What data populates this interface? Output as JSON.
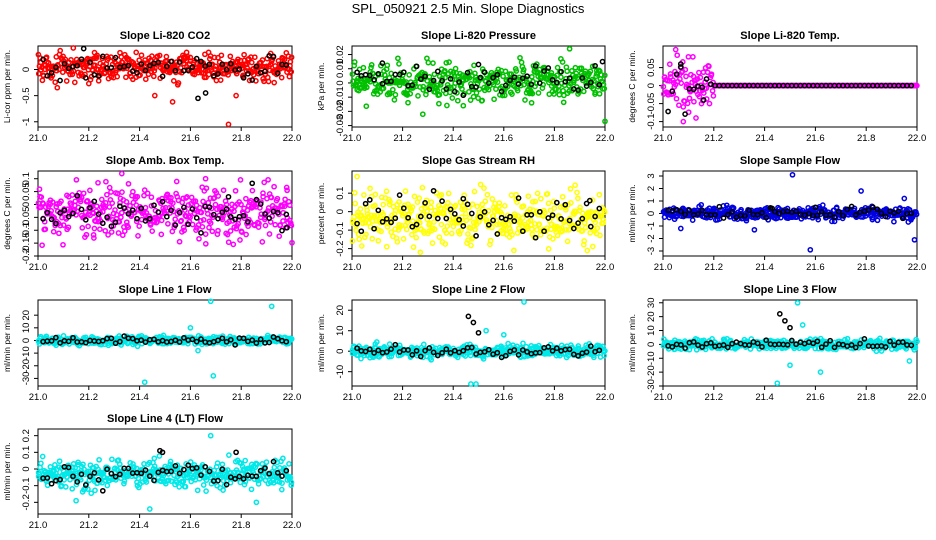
{
  "page": {
    "title": "SPL_050921  2.5 Min. Slope Diagnostics"
  },
  "chart_data": [
    {
      "id": "p1",
      "type": "scatter",
      "title": "Slope Li-820 CO2",
      "ylabel": "Li-cor ppm per min.",
      "xlim": [
        21.0,
        22.0
      ],
      "ylim": [
        -1.1,
        0.45
      ],
      "xticks": [
        21.0,
        21.2,
        21.4,
        21.6,
        21.8,
        22.0
      ],
      "yticks": [
        -1.0,
        -0.5,
        0.0
      ],
      "color": "#ff0000",
      "center": 0.05,
      "spread": 0.13,
      "outliers": [
        [
          21.46,
          -0.5
        ],
        [
          21.78,
          -0.5
        ],
        [
          21.93,
          -0.25
        ],
        [
          21.2,
          -0.27
        ],
        [
          21.75,
          -1.05
        ],
        [
          21.53,
          -0.62
        ]
      ],
      "black_outliers": [
        [
          21.18,
          0.4
        ],
        [
          21.63,
          -0.55
        ],
        [
          21.66,
          -0.45
        ]
      ]
    },
    {
      "id": "p2",
      "type": "scatter",
      "title": "Slope Li-820 Pressure",
      "ylabel": "kPa per min.",
      "xlim": [
        21.0,
        22.0
      ],
      "ylim": [
        -0.031,
        0.026
      ],
      "xticks": [
        21.0,
        21.2,
        21.4,
        21.6,
        21.8,
        22.0
      ],
      "yticks": [
        -0.03,
        -0.02,
        -0.01,
        0.0,
        0.01,
        0.02
      ],
      "color": "#00c000",
      "center": 0.001,
      "spread": 0.006,
      "outliers": [
        [
          21.28,
          -0.022
        ],
        [
          21.86,
          0.024
        ],
        [
          21.44,
          -0.016
        ],
        [
          21.71,
          -0.014
        ],
        [
          22.0,
          -0.027
        ],
        [
          21.32,
          0.014
        ]
      ],
      "black_outliers": [
        [
          21.12,
          0.014
        ],
        [
          21.99,
          0.015
        ],
        [
          21.5,
          0.013
        ]
      ]
    },
    {
      "id": "p3",
      "type": "scatter",
      "title": "Slope Li-820 Temp.",
      "ylabel": "degrees C per min.",
      "xlim": [
        21.0,
        22.0
      ],
      "ylim": [
        -0.115,
        0.11
      ],
      "xticks": [
        21.0,
        21.2,
        21.4,
        21.6,
        21.8,
        22.0
      ],
      "yticks": [
        -0.1,
        -0.05,
        0.0,
        0.05
      ],
      "color": "#ff00ff",
      "center": 0.0,
      "spread": 0.0,
      "transient_end": 21.2,
      "transient_spread": 0.035,
      "outliers": [
        [
          21.05,
          0.1
        ],
        [
          21.08,
          -0.1
        ],
        [
          21.13,
          -0.09
        ],
        [
          21.1,
          0.08
        ]
      ],
      "black_outliers": [
        [
          21.07,
          0.06
        ],
        [
          21.16,
          -0.04
        ]
      ]
    },
    {
      "id": "p4",
      "type": "scatter",
      "title": "Slope Amb. Box Temp.",
      "ylabel": "degrees C per min.",
      "xlim": [
        21.0,
        22.0
      ],
      "ylim": [
        -0.2,
        0.13
      ],
      "xticks": [
        21.0,
        21.2,
        21.4,
        21.6,
        21.8,
        22.0
      ],
      "yticks": [
        -0.2,
        -0.15,
        -0.1,
        -0.05,
        0.0,
        0.05,
        0.1
      ],
      "color": "#ff00ff",
      "center": -0.03,
      "spread": 0.05,
      "outliers": [
        [
          21.33,
          0.12
        ],
        [
          21.66,
          0.1
        ],
        [
          21.22,
          -0.13
        ]
      ],
      "black_outliers": [
        [
          21.75,
          0.03
        ],
        [
          21.98,
          -0.09
        ]
      ]
    },
    {
      "id": "p5",
      "type": "scatter",
      "title": "Slope Gas Stream RH",
      "ylabel": "percent per min.",
      "xlim": [
        21.0,
        22.0
      ],
      "ylim": [
        -0.24,
        0.22
      ],
      "xticks": [
        21.0,
        21.2,
        21.4,
        21.6,
        21.8,
        22.0
      ],
      "yticks": [
        -0.2,
        -0.1,
        0.0,
        0.1
      ],
      "color": "#ffff00",
      "center": -0.03,
      "spread": 0.065,
      "outliers": [
        [
          21.02,
          0.19
        ],
        [
          21.27,
          -0.22
        ],
        [
          21.93,
          -0.21
        ]
      ],
      "black_outliers": [
        [
          21.94,
          0.06
        ],
        [
          21.44,
          0.07
        ]
      ]
    },
    {
      "id": "p6",
      "type": "scatter",
      "title": "Slope Sample Flow",
      "ylabel": "ml/min per min.",
      "xlim": [
        21.0,
        22.0
      ],
      "ylim": [
        -3.4,
        3.4
      ],
      "xticks": [
        21.0,
        21.2,
        21.4,
        21.6,
        21.8,
        22.0
      ],
      "yticks": [
        -3,
        -2,
        -1,
        0,
        1,
        2,
        3
      ],
      "color": "#0000e0",
      "center": 0.0,
      "spread": 0.25,
      "outliers": [
        [
          21.51,
          3.1
        ],
        [
          21.07,
          -1.2
        ],
        [
          21.58,
          -2.9
        ],
        [
          21.99,
          -2.1
        ],
        [
          21.36,
          -1.3
        ],
        [
          21.78,
          1.8
        ],
        [
          21.95,
          1.2
        ]
      ],
      "black_outliers": [
        [
          21.43,
          0.4
        ],
        [
          21.6,
          0.5
        ]
      ]
    },
    {
      "id": "p7",
      "type": "scatter",
      "title": "Slope Line 1 Flow",
      "ylabel": "ml/min per min.",
      "xlim": [
        21.0,
        22.0
      ],
      "ylim": [
        -36,
        32
      ],
      "xticks": [
        21.0,
        21.2,
        21.4,
        21.6,
        21.8,
        22.0
      ],
      "yticks": [
        -30,
        -20,
        -10,
        0,
        10,
        20
      ],
      "color": "#00e8e8",
      "center": 0.0,
      "spread": 1.6,
      "outliers": [
        [
          21.42,
          -33
        ],
        [
          21.68,
          31
        ],
        [
          21.69,
          -28
        ],
        [
          21.92,
          27
        ],
        [
          21.6,
          10
        ],
        [
          21.63,
          -8
        ]
      ],
      "black_outliers": []
    },
    {
      "id": "p8",
      "type": "scatter",
      "title": "Slope Line 2 Flow",
      "ylabel": "ml/min per min.",
      "xlim": [
        21.0,
        22.0
      ],
      "ylim": [
        -17,
        25
      ],
      "xticks": [
        21.0,
        21.2,
        21.4,
        21.6,
        21.8,
        22.0
      ],
      "yticks": [
        -10,
        0,
        10,
        20
      ],
      "color": "#00e8e8",
      "center": 0.0,
      "spread": 1.5,
      "outliers": [
        [
          21.47,
          -16
        ],
        [
          21.49,
          -16
        ],
        [
          21.68,
          24
        ],
        [
          21.6,
          8
        ],
        [
          21.53,
          10
        ]
      ],
      "black_outliers": [
        [
          21.46,
          17
        ],
        [
          21.48,
          14
        ],
        [
          21.5,
          9
        ]
      ]
    },
    {
      "id": "p9",
      "type": "scatter",
      "title": "Slope Line 3 Flow",
      "ylabel": "ml/min per min.",
      "xlim": [
        21.0,
        22.0
      ],
      "ylim": [
        -30,
        32
      ],
      "xticks": [
        21.0,
        21.2,
        21.4,
        21.6,
        21.8,
        22.0
      ],
      "yticks": [
        -30,
        -20,
        -10,
        0,
        10,
        20,
        30
      ],
      "color": "#00e8e8",
      "center": 0.0,
      "spread": 1.8,
      "outliers": [
        [
          21.45,
          -28
        ],
        [
          21.53,
          30
        ],
        [
          21.5,
          -15
        ],
        [
          21.55,
          14
        ],
        [
          21.62,
          -20
        ],
        [
          21.97,
          -12
        ]
      ],
      "black_outliers": [
        [
          21.46,
          22
        ],
        [
          21.48,
          17
        ],
        [
          21.5,
          12
        ]
      ]
    },
    {
      "id": "p10",
      "type": "scatter",
      "title": "Slope Line 4 (LT) Flow",
      "ylabel": "ml/min per min.",
      "xlim": [
        21.0,
        22.0
      ],
      "ylim": [
        -0.27,
        0.24
      ],
      "xticks": [
        21.0,
        21.2,
        21.4,
        21.6,
        21.8,
        22.0
      ],
      "yticks": [
        -0.2,
        -0.1,
        0.0,
        0.1,
        0.2
      ],
      "color": "#00e8e8",
      "center": -0.03,
      "spread": 0.04,
      "outliers": [
        [
          21.44,
          -0.24
        ],
        [
          21.68,
          0.2
        ],
        [
          21.15,
          -0.19
        ],
        [
          21.86,
          -0.2
        ]
      ],
      "black_outliers": [
        [
          21.48,
          0.11
        ],
        [
          21.49,
          0.1
        ],
        [
          21.78,
          0.1
        ]
      ]
    }
  ]
}
